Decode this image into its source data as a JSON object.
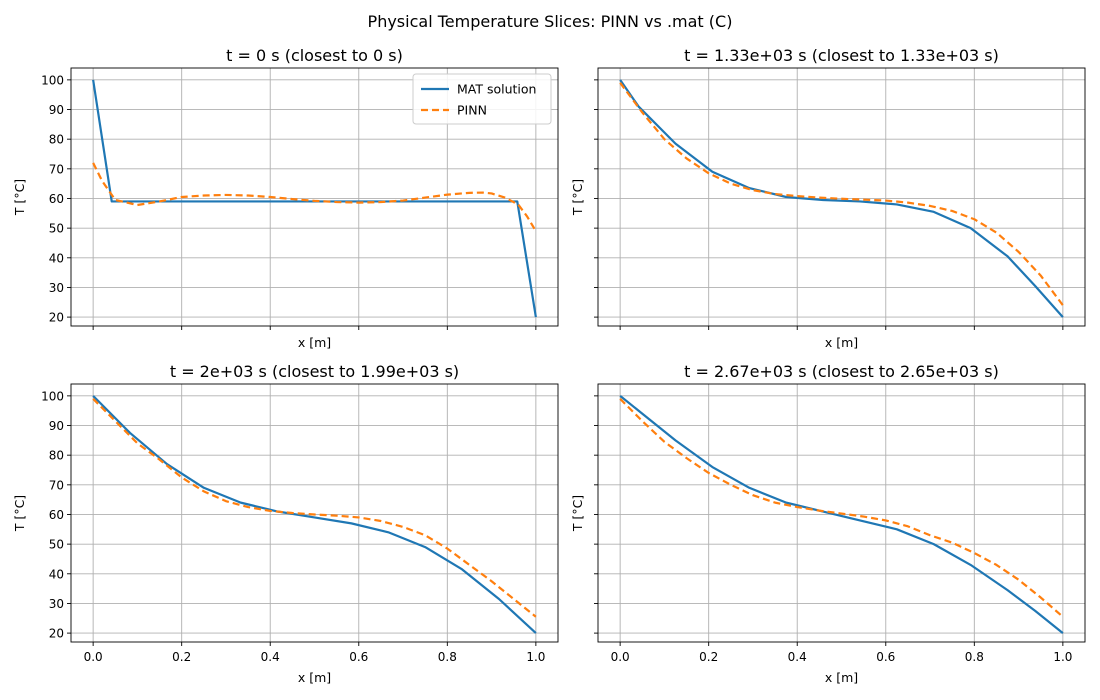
{
  "suptitle": "Physical Temperature Slices: PINN vs .mat (C)",
  "colors": {
    "mat": "#1f77b4",
    "pinn": "#ff7f0e",
    "grid": "#b0b0b0"
  },
  "legend": {
    "placement": "upper right",
    "items": [
      "MAT solution",
      "PINN"
    ]
  },
  "chart_data": [
    {
      "type": "line",
      "title": "t = 0 s (closest to 0 s)",
      "xlabel": "x [m]",
      "ylabel": "T [°C]",
      "xlim": [
        -0.05,
        1.05
      ],
      "ylim": [
        17,
        104
      ],
      "xticks": [
        0,
        0.2,
        0.4,
        0.6,
        0.8,
        1.0
      ],
      "xticklabels_visible": false,
      "yticks": [
        20,
        30,
        40,
        50,
        60,
        70,
        80,
        90,
        100
      ],
      "yticklabels_visible": true,
      "grid": true,
      "legend": true,
      "series": [
        {
          "name": "MAT solution",
          "style": "solid",
          "x": [
            0,
            0.042,
            0.958,
            1.0
          ],
          "y": [
            100,
            59,
            59,
            20
          ]
        },
        {
          "name": "PINN",
          "style": "dashed",
          "x": [
            0,
            0.02,
            0.05,
            0.1,
            0.15,
            0.2,
            0.25,
            0.3,
            0.35,
            0.4,
            0.45,
            0.5,
            0.55,
            0.6,
            0.65,
            0.7,
            0.75,
            0.8,
            0.85,
            0.88,
            0.9,
            0.93,
            0.96,
            0.98,
            1.0
          ],
          "y": [
            72,
            66,
            59.5,
            57.8,
            59,
            60.5,
            61,
            61.2,
            61,
            60.5,
            59.8,
            59.2,
            58.8,
            58.6,
            58.8,
            59.3,
            60.3,
            61.3,
            61.9,
            62,
            61.7,
            60.3,
            58,
            54,
            49
          ]
        }
      ]
    },
    {
      "type": "line",
      "title": "t = 1.33e+03 s (closest to 1.33e+03 s)",
      "xlabel": "x [m]",
      "ylabel": "T [°C]",
      "xlim": [
        -0.05,
        1.05
      ],
      "ylim": [
        17,
        104
      ],
      "xticks": [
        0,
        0.2,
        0.4,
        0.6,
        0.8,
        1.0
      ],
      "xticklabels_visible": false,
      "yticks": [
        20,
        30,
        40,
        50,
        60,
        70,
        80,
        90,
        100
      ],
      "yticklabels_visible": false,
      "grid": true,
      "legend": false,
      "series": [
        {
          "name": "MAT solution",
          "style": "solid",
          "x": [
            0,
            0.0417,
            0.125,
            0.2083,
            0.2917,
            0.375,
            0.4583,
            0.5417,
            0.625,
            0.7083,
            0.7917,
            0.875,
            0.9375,
            1.0
          ],
          "y": [
            100,
            91,
            78.5,
            69,
            63.5,
            60.5,
            59.5,
            59,
            58,
            55.5,
            50,
            40.5,
            30.5,
            20
          ]
        },
        {
          "name": "PINN",
          "style": "dashed",
          "x": [
            0,
            0.05,
            0.1,
            0.15,
            0.2,
            0.25,
            0.3,
            0.35,
            0.4,
            0.45,
            0.5,
            0.55,
            0.6,
            0.65,
            0.7,
            0.75,
            0.8,
            0.85,
            0.9,
            0.95,
            1.0
          ],
          "y": [
            99,
            89,
            80,
            73.5,
            68.5,
            65,
            62.8,
            61.5,
            60.8,
            60.3,
            59.9,
            59.6,
            59.3,
            58.6,
            57.5,
            55.8,
            53,
            48.5,
            42,
            34,
            24
          ]
        }
      ]
    },
    {
      "type": "line",
      "title": "t = 2e+03 s (closest to 1.99e+03 s)",
      "xlabel": "x [m]",
      "ylabel": "T [°C]",
      "xlim": [
        -0.05,
        1.05
      ],
      "ylim": [
        17,
        104
      ],
      "xticks": [
        0,
        0.2,
        0.4,
        0.6,
        0.8,
        1.0
      ],
      "xticklabels_visible": true,
      "xticklabels": [
        "0.0",
        "0.2",
        "0.4",
        "0.6",
        "0.8",
        "1.0"
      ],
      "yticks": [
        20,
        30,
        40,
        50,
        60,
        70,
        80,
        90,
        100
      ],
      "yticklabels_visible": true,
      "grid": true,
      "legend": false,
      "series": [
        {
          "name": "MAT solution",
          "style": "solid",
          "x": [
            0,
            0.0833,
            0.1667,
            0.25,
            0.3333,
            0.4167,
            0.5,
            0.5833,
            0.6667,
            0.75,
            0.8333,
            0.9167,
            1.0
          ],
          "y": [
            100,
            87.5,
            77,
            69,
            64,
            61,
            59,
            57,
            54,
            49,
            41.5,
            31.5,
            20
          ]
        },
        {
          "name": "PINN",
          "style": "dashed",
          "x": [
            0,
            0.05,
            0.1,
            0.15,
            0.2,
            0.25,
            0.3,
            0.35,
            0.4,
            0.45,
            0.5,
            0.55,
            0.6,
            0.65,
            0.7,
            0.75,
            0.8,
            0.85,
            0.9,
            0.95,
            1.0
          ],
          "y": [
            99,
            91.5,
            84,
            78.5,
            72.5,
            67.8,
            64.5,
            62.5,
            61.2,
            60.5,
            60,
            59.6,
            59,
            57.8,
            55.8,
            53,
            48.5,
            43,
            37.5,
            31.5,
            25.5
          ]
        }
      ]
    },
    {
      "type": "line",
      "title": "t = 2.67e+03 s (closest to 2.65e+03 s)",
      "xlabel": "x [m]",
      "ylabel": "T [°C]",
      "xlim": [
        -0.05,
        1.05
      ],
      "ylim": [
        17,
        104
      ],
      "xticks": [
        0,
        0.2,
        0.4,
        0.6,
        0.8,
        1.0
      ],
      "xticklabels_visible": true,
      "xticklabels": [
        "0.0",
        "0.2",
        "0.4",
        "0.6",
        "0.8",
        "1.0"
      ],
      "yticks": [
        20,
        30,
        40,
        50,
        60,
        70,
        80,
        90,
        100
      ],
      "yticklabels_visible": false,
      "grid": true,
      "legend": false,
      "series": [
        {
          "name": "MAT solution",
          "style": "solid",
          "x": [
            0,
            0.125,
            0.2083,
            0.2917,
            0.375,
            0.4583,
            0.5417,
            0.625,
            0.7083,
            0.7917,
            0.875,
            0.9375,
            1.0
          ],
          "y": [
            100,
            85,
            76,
            69,
            64,
            61,
            58,
            55,
            50,
            43,
            34.5,
            27.5,
            20
          ]
        },
        {
          "name": "PINN",
          "style": "dashed",
          "x": [
            0,
            0.05,
            0.1,
            0.15,
            0.2,
            0.25,
            0.3,
            0.35,
            0.4,
            0.45,
            0.5,
            0.55,
            0.6,
            0.65,
            0.7,
            0.75,
            0.8,
            0.85,
            0.9,
            0.95,
            1.0
          ],
          "y": [
            99,
            91.5,
            84.5,
            79,
            74,
            70,
            66.5,
            64,
            62.5,
            61.3,
            60.3,
            59.3,
            58,
            56,
            53,
            50.5,
            47,
            43,
            38,
            32,
            25.5
          ]
        }
      ]
    }
  ]
}
